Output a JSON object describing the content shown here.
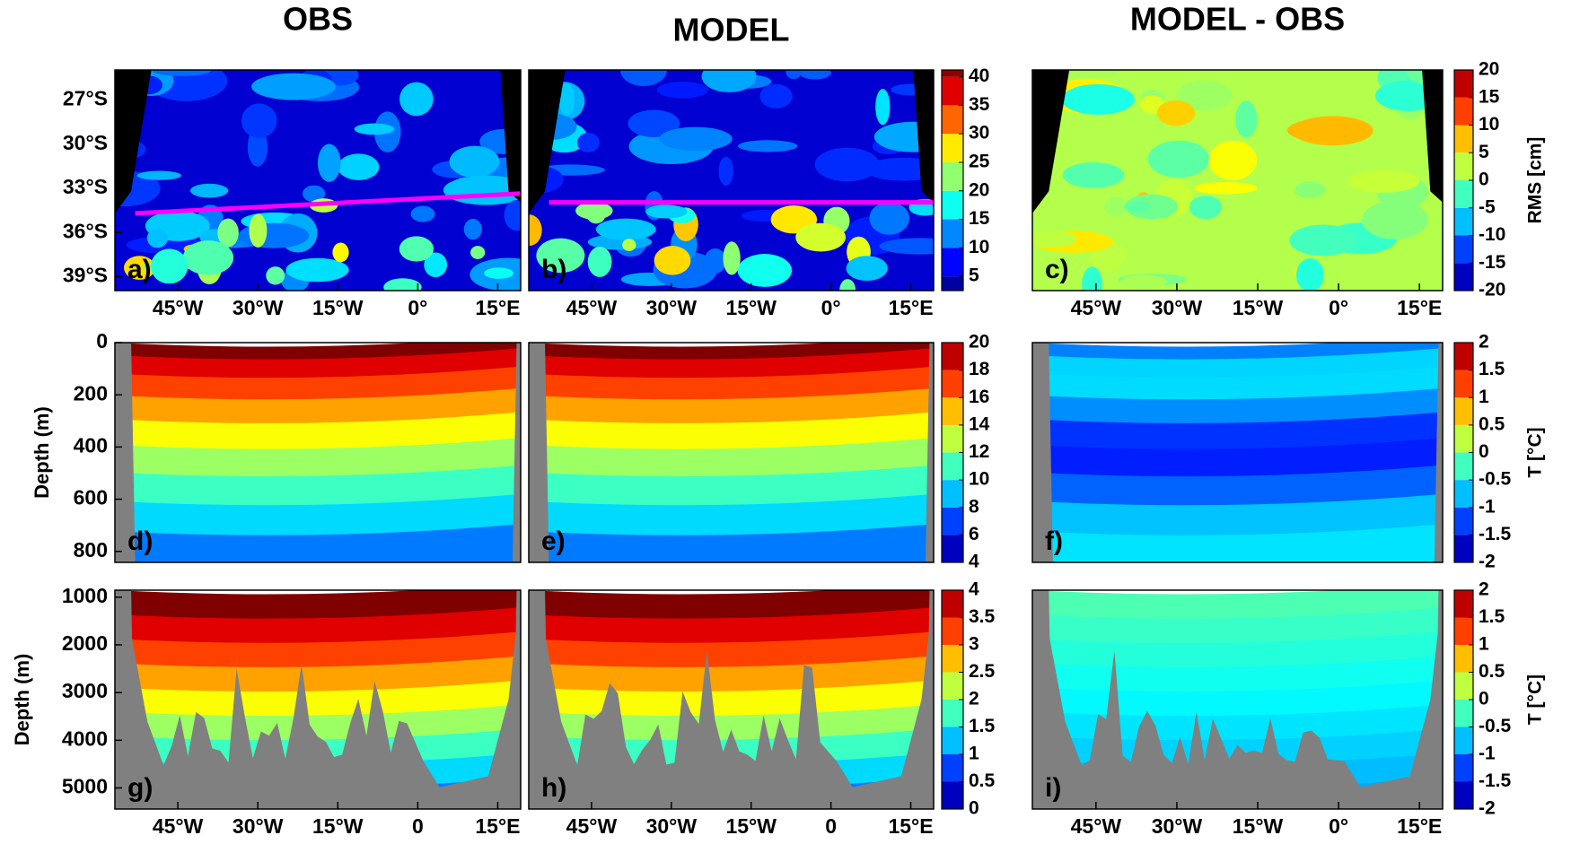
{
  "chart_data": [
    {
      "type": "contour",
      "title": "OBS",
      "label": "a)",
      "xlim": [
        -56.8,
        19.3
      ],
      "xticks": [
        {
          "value": -45,
          "label": "45°W"
        },
        {
          "value": -30,
          "label": "30°W"
        },
        {
          "value": -15,
          "label": "15°W"
        },
        {
          "value": 0,
          "label": "0°"
        },
        {
          "value": 15,
          "label": "15°E"
        }
      ],
      "ylim": [
        -39.95,
        -24.95
      ],
      "yticks": [
        {
          "value": -27,
          "label": "27°S"
        },
        {
          "value": -30,
          "label": "30°S"
        },
        {
          "value": -33,
          "label": "33°S"
        },
        {
          "value": -36,
          "label": "36°S"
        },
        {
          "value": -39,
          "label": "39°S"
        }
      ]
    },
    {
      "type": "contour",
      "title": "MODEL",
      "label": "b)",
      "xlim": [
        -56.8,
        19.3
      ],
      "xticks": [
        {
          "value": -45,
          "label": "45°W"
        },
        {
          "value": -30,
          "label": "30°W"
        },
        {
          "value": -15,
          "label": "15°W"
        },
        {
          "value": 0,
          "label": "0°"
        },
        {
          "value": 15,
          "label": "15°E"
        }
      ],
      "ylim": [
        -39.95,
        -24.95
      ],
      "colorbar": {
        "lim": [
          2.5,
          41.2
        ],
        "ticks": [
          5,
          10,
          15,
          20,
          25,
          30,
          35,
          40
        ]
      }
    },
    {
      "type": "contour",
      "title": "MODEL - OBS",
      "label": "c)",
      "xlim": [
        -56.8,
        19.3
      ],
      "xticks": [
        {
          "value": -45,
          "label": "45°W"
        },
        {
          "value": -30,
          "label": "30°W"
        },
        {
          "value": -15,
          "label": "15°W"
        },
        {
          "value": 0,
          "label": "0°"
        },
        {
          "value": 15,
          "label": "15°E"
        }
      ],
      "ylim": [
        -39.95,
        -24.95
      ],
      "colorbar": {
        "lim": [
          -20,
          20
        ],
        "ticks": [
          -20,
          -15,
          -10,
          -5,
          0,
          5,
          10,
          15,
          20
        ],
        "label": "RMS [cm]"
      }
    },
    {
      "type": "contour",
      "label": "d)",
      "ylabel": "Depth (m)",
      "xlim": [
        -56.8,
        19.3
      ],
      "ylim": [
        842,
        0
      ],
      "yticks": [
        0,
        200,
        400,
        600,
        800
      ]
    },
    {
      "type": "contour",
      "label": "e)",
      "xlim": [
        -56.8,
        19.3
      ],
      "ylim": [
        842,
        0
      ],
      "colorbar": {
        "lim": [
          4,
          20
        ],
        "ticks": [
          4,
          6,
          8,
          10,
          12,
          14,
          16,
          18,
          20
        ]
      }
    },
    {
      "type": "contour",
      "label": "f)",
      "xlim": [
        -56.8,
        19.3
      ],
      "ylim": [
        842,
        0
      ],
      "colorbar": {
        "lim": [
          -2,
          2
        ],
        "ticks": [
          -2,
          -1.5,
          -1,
          -0.5,
          0,
          0.5,
          1,
          1.5,
          2
        ],
        "label": "T [°C]"
      }
    },
    {
      "type": "contour",
      "label": "g)",
      "ylabel": "Depth (m)",
      "xlim": [
        -56.8,
        19.3
      ],
      "xticks": [
        {
          "value": -45,
          "label": "45°W"
        },
        {
          "value": -30,
          "label": "30°W"
        },
        {
          "value": -15,
          "label": "15°W"
        },
        0,
        {
          "value": 15,
          "label": "15°E"
        }
      ],
      "ylim": [
        5442,
        853
      ],
      "yticks": [
        1000,
        2000,
        3000,
        4000,
        5000
      ]
    },
    {
      "type": "contour",
      "label": "h)",
      "xlim": [
        -56.8,
        19.3
      ],
      "xticks": [
        {
          "value": -45,
          "label": "45°W"
        },
        {
          "value": -30,
          "label": "30°W"
        },
        {
          "value": -15,
          "label": "15°W"
        },
        0,
        {
          "value": 15,
          "label": "15°E"
        }
      ],
      "ylim": [
        5442,
        853
      ],
      "colorbar": {
        "lim": [
          0,
          4
        ],
        "ticks": [
          0,
          0.5,
          1,
          1.5,
          2,
          2.5,
          3,
          3.5,
          4
        ]
      }
    },
    {
      "type": "contour",
      "label": "i)",
      "xlim": [
        -56.8,
        19.3
      ],
      "xticks": [
        {
          "value": -45,
          "label": "45°W"
        },
        {
          "value": -30,
          "label": "30°W"
        },
        {
          "value": -15,
          "label": "15°W"
        },
        {
          "value": 0,
          "label": "0°"
        },
        {
          "value": 15,
          "label": "15°E"
        }
      ],
      "ylim": [
        5442,
        853
      ],
      "colorbar": {
        "lim": [
          -2,
          2
        ],
        "ticks": [
          -2,
          -1.5,
          -1,
          -0.5,
          0,
          0.5,
          1,
          1.5,
          2
        ],
        "label": "T [°C]"
      }
    }
  ]
}
